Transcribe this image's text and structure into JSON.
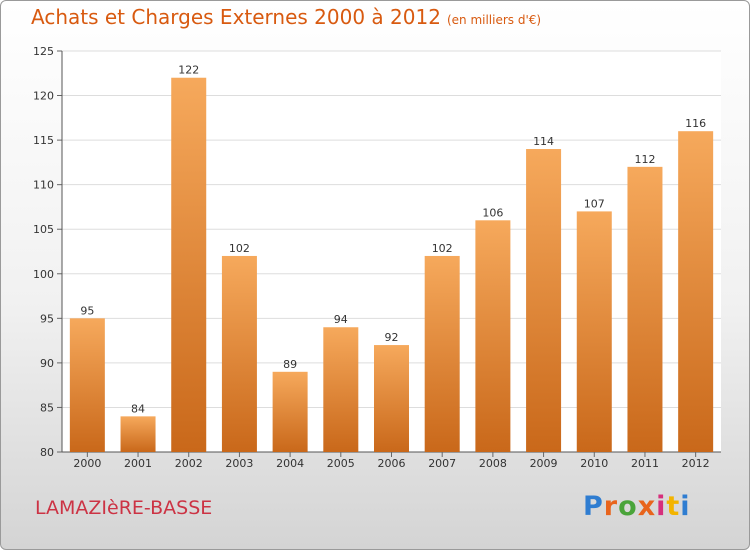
{
  "title": "Achats et Charges Externes 2000 à 2012",
  "subtitle": "(en milliers d'€)",
  "commune": "LAMAZIèRE-BASSE",
  "logo": {
    "text": "Proxiti",
    "colors": [
      "#2f7dd1",
      "#e8641c",
      "#4aa43a",
      "#e8641c",
      "#d62f7c",
      "#f3b400",
      "#2f7dd1"
    ]
  },
  "colors": {
    "bar_light": "#f6a95c",
    "bar_dark": "#c9681a",
    "title": "#d85a10",
    "commune": "#cc3344"
  },
  "chart_data": {
    "type": "bar",
    "categories": [
      "2000",
      "2001",
      "2002",
      "2003",
      "2004",
      "2005",
      "2006",
      "2007",
      "2008",
      "2009",
      "2010",
      "2011",
      "2012"
    ],
    "values": [
      95,
      84,
      122,
      102,
      89,
      94,
      92,
      102,
      106,
      114,
      107,
      112,
      116
    ],
    "ylim": [
      80,
      125
    ],
    "yticks": [
      80,
      85,
      90,
      95,
      100,
      105,
      110,
      115,
      120,
      125
    ],
    "grid": true,
    "title": "Achats et Charges Externes 2000 à 2012",
    "xlabel": "",
    "ylabel": ""
  }
}
